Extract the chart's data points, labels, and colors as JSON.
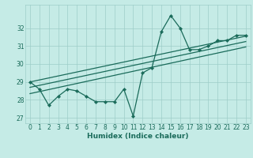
{
  "x": [
    0,
    1,
    2,
    3,
    4,
    5,
    6,
    7,
    8,
    9,
    10,
    11,
    12,
    13,
    14,
    15,
    16,
    17,
    18,
    19,
    20,
    21,
    22,
    23
  ],
  "line1": [
    29.0,
    28.6,
    27.7,
    28.2,
    28.6,
    28.5,
    28.2,
    27.9,
    27.9,
    27.9,
    28.6,
    27.1,
    29.5,
    29.8,
    31.8,
    32.7,
    32.0,
    30.8,
    30.8,
    31.0,
    31.3,
    31.3,
    31.6,
    31.6
  ],
  "straight_lines": [
    [
      29.0,
      31.55
    ],
    [
      28.7,
      31.25
    ],
    [
      28.35,
      30.95
    ]
  ],
  "bg_color": "#c5ebe6",
  "grid_color": "#9dcdc8",
  "line_color": "#1a6b5a",
  "xlabel": "Humidex (Indice chaleur)",
  "ylim": [
    26.7,
    33.3
  ],
  "yticks": [
    27,
    28,
    29,
    30,
    31,
    32
  ],
  "xlim": [
    -0.5,
    23.5
  ],
  "xticks": [
    0,
    1,
    2,
    3,
    4,
    5,
    6,
    7,
    8,
    9,
    10,
    11,
    12,
    13,
    14,
    15,
    16,
    17,
    18,
    19,
    20,
    21,
    22,
    23
  ],
  "tick_fontsize": 5.5,
  "xlabel_fontsize": 6.5
}
